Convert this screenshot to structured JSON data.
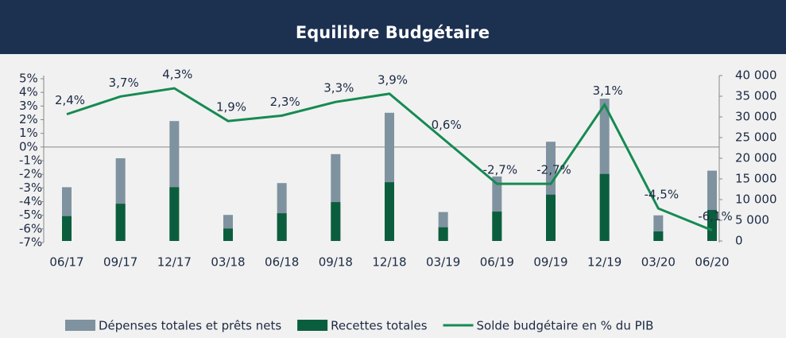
{
  "chart_data": {
    "type": "bar-line",
    "title": "Equilibre Budgétaire",
    "categories": [
      "06/17",
      "09/17",
      "12/17",
      "03/18",
      "06/18",
      "09/18",
      "12/18",
      "03/19",
      "06/19",
      "09/19",
      "12/19",
      "03/20",
      "06/20"
    ],
    "series": [
      {
        "name": "Dépenses totales et prêts nets",
        "type": "bar",
        "axis": "y2",
        "color": "#7f929f",
        "values": [
          13000,
          20000,
          29000,
          6300,
          14000,
          21000,
          31000,
          7000,
          15600,
          24000,
          34400,
          6200,
          17000
        ]
      },
      {
        "name": "Recettes totales",
        "type": "bar",
        "axis": "y2",
        "color": "#0b5e3d",
        "values": [
          6000,
          9000,
          13000,
          3000,
          6700,
          9400,
          14200,
          3300,
          7100,
          11200,
          16200,
          2300,
          7500
        ]
      },
      {
        "name": "Solde budgétaire en % du PIB",
        "type": "line",
        "axis": "y",
        "color": "#168a52",
        "values": [
          2.4,
          3.7,
          4.3,
          1.9,
          2.3,
          3.3,
          3.9,
          0.6,
          -2.7,
          -2.7,
          3.1,
          -4.5,
          -6.1
        ],
        "value_labels": [
          "2,4%",
          "3,7%",
          "4,3%",
          "1,9%",
          "2,3%",
          "3,3%",
          "3,9%",
          "0,6%",
          "-2,7%",
          "-2,7%",
          "3,1%",
          "-4,5%",
          "-6,1%"
        ]
      }
    ],
    "ylim": [
      -7,
      5
    ],
    "yticks": [
      {
        "value": 5,
        "label": "5%"
      },
      {
        "value": 4,
        "label": "4%"
      },
      {
        "value": 3,
        "label": "3%"
      },
      {
        "value": 2,
        "label": "2%"
      },
      {
        "value": 1,
        "label": "1%"
      },
      {
        "value": 0,
        "label": "0%"
      },
      {
        "value": -1,
        "label": "-1%"
      },
      {
        "value": -2,
        "label": "-2%"
      },
      {
        "value": -3,
        "label": "-3%"
      },
      {
        "value": -4,
        "label": "-4%"
      },
      {
        "value": -5,
        "label": "-5%"
      },
      {
        "value": -6,
        "label": "-6%"
      },
      {
        "value": -7,
        "label": "-7%"
      }
    ],
    "y2lim": [
      0,
      40000
    ],
    "y2ticks": [
      {
        "value": 40000,
        "label": "40 000"
      },
      {
        "value": 35000,
        "label": "35 000"
      },
      {
        "value": 30000,
        "label": "30 000"
      },
      {
        "value": 25000,
        "label": "25 000"
      },
      {
        "value": 20000,
        "label": "20 000"
      },
      {
        "value": 15000,
        "label": "15 000"
      },
      {
        "value": 10000,
        "label": "10 000"
      },
      {
        "value": 5000,
        "label": "5 000"
      },
      0
    ],
    "legend": "bottom"
  }
}
